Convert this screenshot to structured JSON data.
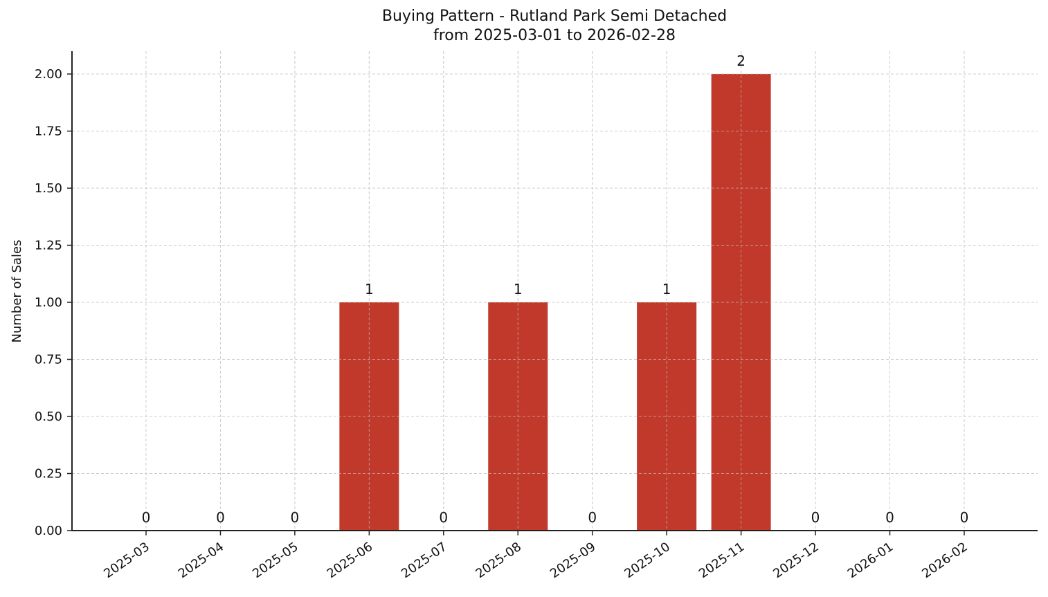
{
  "chart_data": {
    "type": "bar",
    "title": "Buying Pattern - Rutland Park Semi Detached",
    "subtitle": "from 2025-03-01 to 2026-02-28",
    "xlabel": "",
    "ylabel": "Number of Sales",
    "categories": [
      "2025-03",
      "2025-04",
      "2025-05",
      "2025-06",
      "2025-07",
      "2025-08",
      "2025-09",
      "2025-10",
      "2025-11",
      "2025-12",
      "2026-01",
      "2026-02"
    ],
    "values": [
      0,
      0,
      0,
      1,
      0,
      1,
      0,
      1,
      2,
      0,
      0,
      0
    ],
    "data_labels": [
      "0",
      "0",
      "0",
      "1",
      "0",
      "1",
      "0",
      "1",
      "2",
      "0",
      "0",
      "0"
    ],
    "ylim": [
      0,
      2.1
    ],
    "yticks": [
      0.0,
      0.25,
      0.5,
      0.75,
      1.0,
      1.25,
      1.5,
      1.75,
      2.0
    ],
    "ytick_labels": [
      "0.00",
      "0.25",
      "0.50",
      "0.75",
      "1.00",
      "1.25",
      "1.50",
      "1.75",
      "2.00"
    ],
    "grid": true,
    "legend": null,
    "bar_color": "#C0392B"
  }
}
